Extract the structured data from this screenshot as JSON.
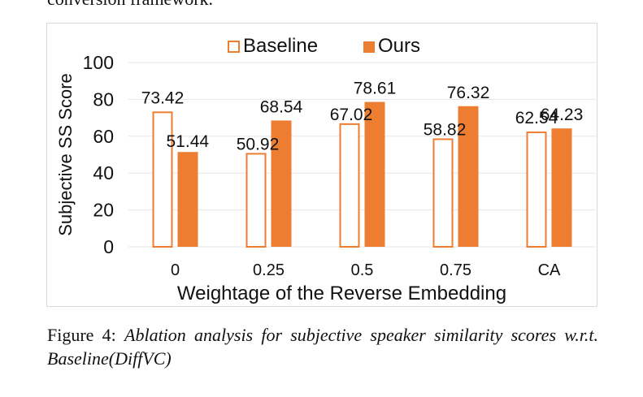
{
  "page": {
    "top_fragment": "conversion framework.",
    "caption_label": "Figure 4:",
    "caption_text": "Ablation analysis for subjective speaker similarity scores w.r.t. Baseline(DiffVC)"
  },
  "chart_data": {
    "type": "bar",
    "title": "",
    "xlabel": "Weightage of the Reverse Embedding",
    "ylabel": "Subjective SS Score",
    "categories": [
      "0",
      "0.25",
      "0.5",
      "0.75",
      "CA"
    ],
    "series": [
      {
        "name": "Baseline",
        "style": "outline",
        "color": "#ED7D31",
        "values": [
          73.42,
          50.92,
          67.02,
          58.82,
          62.54
        ]
      },
      {
        "name": "Ours",
        "style": "filled",
        "color": "#ED7D31",
        "values": [
          51.44,
          68.54,
          78.61,
          76.32,
          64.23
        ]
      }
    ],
    "ylim": [
      0,
      100
    ],
    "yticks": [
      0,
      20,
      40,
      60,
      80,
      100
    ],
    "grid": true,
    "legend": "top-center"
  }
}
